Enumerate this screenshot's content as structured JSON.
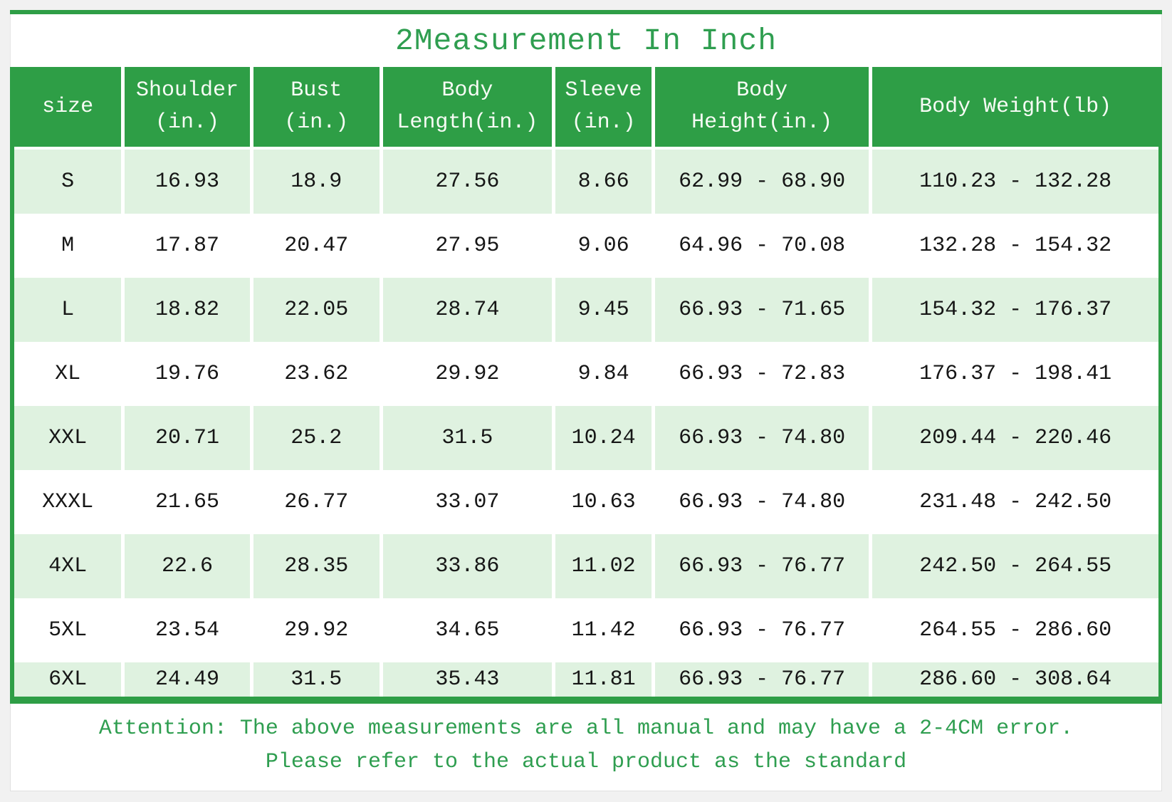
{
  "page_title": "2Measurement In Inch",
  "colors": {
    "green": "#2e9e46",
    "light_green_row": "#dff2e0",
    "text_green": "#2f9e50",
    "header_text": "#f6fbf4",
    "body_text": "#161616"
  },
  "chart_data": {
    "type": "table",
    "title": "2Measurement In Inch",
    "columns": [
      "size",
      "Shoulder\n(in.)",
      "Bust\n(in.)",
      "Body\nLength(in.)",
      "Sleeve\n(in.)",
      "Body\nHeight(in.)",
      "Body Weight(lb)"
    ],
    "rows": [
      [
        "S",
        "16.93",
        "18.9",
        "27.56",
        "8.66",
        "62.99 - 68.90",
        "110.23 - 132.28"
      ],
      [
        "M",
        "17.87",
        "20.47",
        "27.95",
        "9.06",
        "64.96 - 70.08",
        "132.28 - 154.32"
      ],
      [
        "L",
        "18.82",
        "22.05",
        "28.74",
        "9.45",
        "66.93 - 71.65",
        "154.32 - 176.37"
      ],
      [
        "XL",
        "19.76",
        "23.62",
        "29.92",
        "9.84",
        "66.93 - 72.83",
        "176.37 - 198.41"
      ],
      [
        "XXL",
        "20.71",
        "25.2",
        "31.5",
        "10.24",
        "66.93 - 74.80",
        "209.44 - 220.46"
      ],
      [
        "XXXL",
        "21.65",
        "26.77",
        "33.07",
        "10.63",
        "66.93 - 74.80",
        "231.48 - 242.50"
      ],
      [
        "4XL",
        "22.6",
        "28.35",
        "33.86",
        "11.02",
        "66.93 - 76.77",
        "242.50 - 264.55"
      ],
      [
        "5XL",
        "23.54",
        "29.92",
        "34.65",
        "11.42",
        "66.93 - 76.77",
        "264.55 - 286.60"
      ],
      [
        "6XL",
        "24.49",
        "31.5",
        "35.43",
        "11.81",
        "66.93 - 76.77",
        "286.60 - 308.64"
      ]
    ]
  },
  "footer": {
    "line1": "Attention: The above measurements are all manual and may have a 2-4CM error.",
    "line2": "Please refer to the actual product as the standard"
  }
}
